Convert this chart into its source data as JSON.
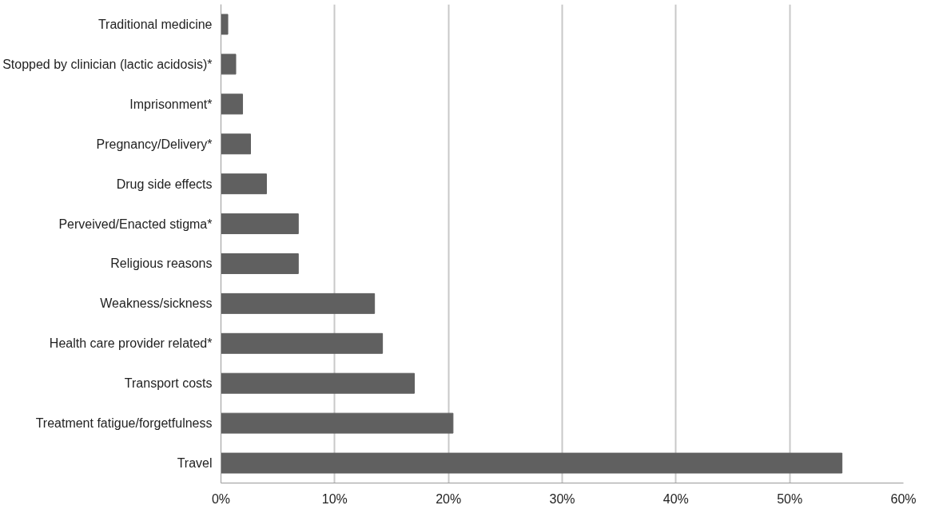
{
  "chart_data": {
    "type": "bar",
    "orientation": "horizontal",
    "categories": [
      "Traditional medicine",
      "Stopped by clinician (lactic acidosis)*",
      "Imprisonment*",
      "Pregnancy/Delivery*",
      "Drug side effects",
      "Perveived/Enacted stigma*",
      "Religious reasons",
      "Weakness/sickness",
      "Health care provider related*",
      "Transport costs",
      "Treatment fatigue/forgetfulness",
      "Travel"
    ],
    "values": [
      0.6,
      1.3,
      1.9,
      2.6,
      4.0,
      6.8,
      6.8,
      13.5,
      14.2,
      17.0,
      20.4,
      54.6
    ],
    "color": "#606060",
    "xlim": [
      0,
      60
    ],
    "xticks": [
      {
        "value": 0,
        "label": "0%"
      },
      {
        "value": 10,
        "label": "10%"
      },
      {
        "value": 20,
        "label": "20%"
      },
      {
        "value": 30,
        "label": "30%"
      },
      {
        "value": 40,
        "label": "40%"
      },
      {
        "value": 50,
        "label": "50%"
      },
      {
        "value": 60,
        "label": "60%"
      }
    ],
    "grid": "x"
  }
}
